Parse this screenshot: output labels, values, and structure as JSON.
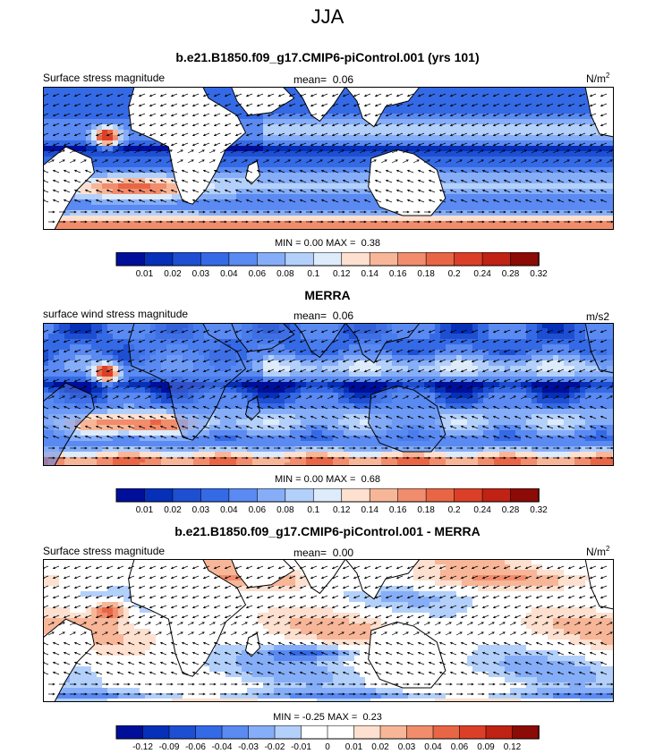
{
  "figure": {
    "title": "JJA"
  },
  "colors": {
    "abs_scale": [
      "#000f9a",
      "#0630b8",
      "#1e4fd2",
      "#356ae6",
      "#5a8af2",
      "#86aef8",
      "#b3d0fb",
      "#deebfb",
      "#fde0cf",
      "#f8b698",
      "#f18d6c",
      "#e86646",
      "#dc3f27",
      "#c02214",
      "#8c0b06"
    ],
    "diff_scale": [
      "#000f9a",
      "#0630b8",
      "#1e4fd2",
      "#356ae6",
      "#5a8af2",
      "#86aef8",
      "#b3d0fb",
      "#ffffff",
      "#ffffff",
      "#fde0cf",
      "#f8b698",
      "#f18d6c",
      "#e86646",
      "#dc3f27",
      "#c02214",
      "#8c0b06"
    ],
    "land": "#ffffff"
  },
  "chart_data": [
    {
      "type": "heatmap",
      "title": "b.e21.B1850.f09_g17.CMIP6-piControl.001 (yrs 101)",
      "left_label": "Surface stress magnitude",
      "mean_label": "mean=",
      "mean_value": "0.06",
      "units": "N/m",
      "units_sup": "2",
      "min_label": "MIN =",
      "min_value": "0.00",
      "max_label": "MAX =",
      "max_value": "0.38",
      "colorbar_ticks": [
        "0.01",
        "0.02",
        "0.03",
        "0.04",
        "0.06",
        "0.08",
        "0.1",
        "0.12",
        "0.14",
        "0.16",
        "0.18",
        "0.2",
        "0.24",
        "0.28",
        "0.32"
      ]
    },
    {
      "type": "heatmap",
      "title": "MERRA",
      "left_label": "surface wind stress magnitude",
      "mean_label": "mean=",
      "mean_value": "0.06",
      "units": "m/s2",
      "units_sup": "",
      "min_label": "MIN =",
      "min_value": "0.00",
      "max_label": "MAX =",
      "max_value": "0.68",
      "colorbar_ticks": [
        "0.01",
        "0.02",
        "0.03",
        "0.04",
        "0.06",
        "0.08",
        "0.1",
        "0.12",
        "0.14",
        "0.16",
        "0.18",
        "0.2",
        "0.24",
        "0.28",
        "0.32"
      ]
    },
    {
      "type": "heatmap",
      "title": "b.e21.B1850.f09_g17.CMIP6-piControl.001 - MERRA",
      "left_label": "Surface stress magnitude",
      "mean_label": "mean=",
      "mean_value": "0.00",
      "units": "N/m",
      "units_sup": "2",
      "min_label": "MIN =",
      "min_value": "-0.25",
      "max_label": "MAX =",
      "max_value": "0.23",
      "colorbar_ticks": [
        "-0.12",
        "-0.09",
        "-0.06",
        "-0.04",
        "-0.03",
        "-0.02",
        "-0.01",
        "0",
        "0.01",
        "0.02",
        "0.03",
        "0.04",
        "0.06",
        "0.09",
        "0.12"
      ]
    }
  ]
}
